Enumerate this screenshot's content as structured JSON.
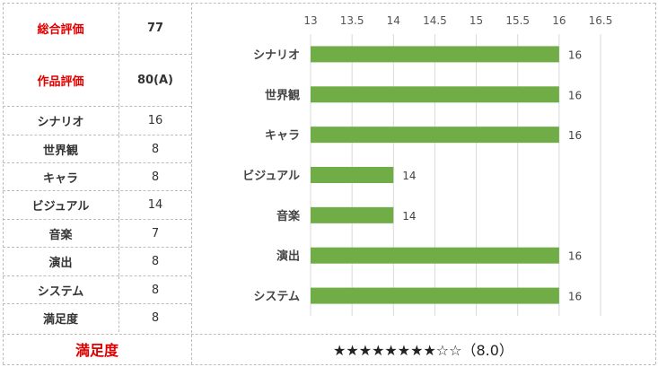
{
  "table": {
    "rows": [
      {
        "label": "総合評価",
        "value": "77",
        "style": "red"
      },
      {
        "label": "作品評価",
        "value": "80(A)",
        "style": "red"
      },
      {
        "label": "シナリオ",
        "value": "16"
      },
      {
        "label": "世界観",
        "value": "8"
      },
      {
        "label": "キャラ",
        "value": "8"
      },
      {
        "label": "ビジュアル",
        "value": "14"
      },
      {
        "label": "音楽",
        "value": "7"
      },
      {
        "label": "演出",
        "value": "8"
      },
      {
        "label": "システム",
        "value": "8"
      },
      {
        "label": "満足度",
        "value": "8"
      }
    ]
  },
  "footer": {
    "label": "満足度",
    "stars": "★★★★★★★★☆☆（8.0）"
  },
  "chart_data": {
    "type": "bar",
    "orientation": "horizontal",
    "categories": [
      "シナリオ",
      "世界観",
      "キャラ",
      "ビジュアル",
      "音楽",
      "演出",
      "システム"
    ],
    "values": [
      16,
      16,
      16,
      14,
      14,
      16,
      16
    ],
    "xlim": [
      13,
      16.5
    ],
    "xticks": [
      "13",
      "13.5",
      "14",
      "14.5",
      "15",
      "15.5",
      "16",
      "16.5"
    ],
    "grid": true,
    "bar_color": "#70ad47",
    "axis_position": "top"
  }
}
